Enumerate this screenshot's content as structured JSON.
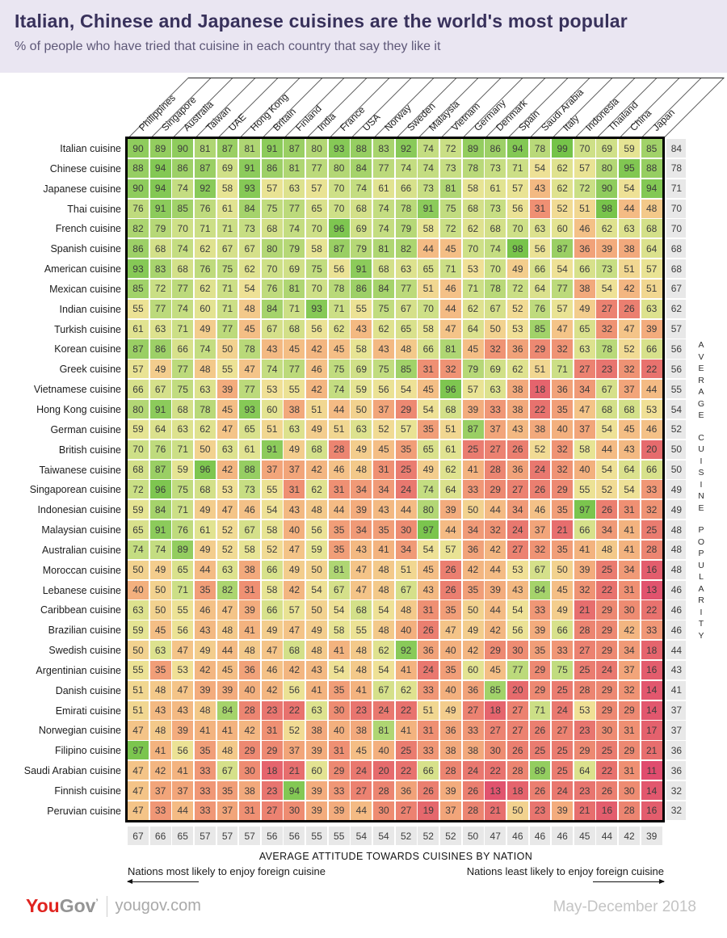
{
  "chart_data": {
    "type": "heatmap",
    "title": "Italian, Chinese and Japanese cuisines are the world's most popular",
    "subtitle": "% of people who have tried that cuisine in each country that say they like it",
    "columns": [
      "Philippines",
      "Singapore",
      "Australia",
      "Taiwan",
      "UAE",
      "Hong Kong",
      "Britain",
      "Finland",
      "India",
      "France",
      "USA",
      "Norway",
      "Sweden",
      "Malaysia",
      "Vietnam",
      "Germany",
      "Denmark",
      "Spain",
      "Saudi Arabia",
      "Italy",
      "Indonesia",
      "Thailand",
      "China",
      "Japan"
    ],
    "rows": [
      {
        "label": "Italian cuisine",
        "values": [
          90,
          89,
          90,
          81,
          87,
          81,
          91,
          87,
          80,
          93,
          88,
          83,
          92,
          74,
          72,
          89,
          86,
          94,
          78,
          99,
          70,
          69,
          59,
          85
        ],
        "average": 84
      },
      {
        "label": "Chinese cuisine",
        "values": [
          88,
          94,
          86,
          87,
          69,
          91,
          86,
          81,
          77,
          80,
          84,
          77,
          74,
          74,
          73,
          78,
          73,
          71,
          54,
          62,
          57,
          80,
          95,
          88
        ],
        "average": 78
      },
      {
        "label": "Japanese cuisine",
        "values": [
          90,
          94,
          74,
          92,
          58,
          93,
          57,
          63,
          57,
          70,
          74,
          61,
          66,
          73,
          81,
          58,
          61,
          57,
          43,
          62,
          72,
          90,
          54,
          94
        ],
        "average": 71
      },
      {
        "label": "Thai cuisine",
        "values": [
          76,
          91,
          85,
          76,
          61,
          84,
          75,
          77,
          65,
          70,
          68,
          74,
          78,
          91,
          75,
          68,
          73,
          56,
          31,
          52,
          51,
          98,
          44,
          48
        ],
        "average": 70
      },
      {
        "label": "French cuisine",
        "values": [
          82,
          79,
          70,
          71,
          71,
          73,
          68,
          74,
          70,
          96,
          69,
          74,
          79,
          58,
          72,
          62,
          68,
          70,
          63,
          60,
          46,
          62,
          63,
          68
        ],
        "average": 70
      },
      {
        "label": "Spanish cuisine",
        "values": [
          86,
          68,
          74,
          62,
          67,
          67,
          80,
          79,
          58,
          87,
          79,
          81,
          82,
          44,
          45,
          70,
          74,
          98,
          56,
          87,
          36,
          39,
          38,
          64
        ],
        "average": 68
      },
      {
        "label": "American cuisine",
        "values": [
          93,
          83,
          68,
          76,
          75,
          62,
          70,
          69,
          75,
          56,
          91,
          68,
          63,
          65,
          71,
          53,
          70,
          49,
          66,
          54,
          66,
          73,
          51,
          57
        ],
        "average": 68
      },
      {
        "label": "Mexican cuisine",
        "values": [
          85,
          72,
          77,
          62,
          71,
          54,
          76,
          81,
          70,
          78,
          86,
          84,
          77,
          51,
          46,
          71,
          78,
          72,
          64,
          77,
          38,
          54,
          42,
          51
        ],
        "average": 67
      },
      {
        "label": "Indian cuisine",
        "values": [
          55,
          77,
          74,
          60,
          71,
          48,
          84,
          71,
          93,
          71,
          55,
          75,
          67,
          70,
          44,
          62,
          67,
          52,
          76,
          57,
          49,
          27,
          26,
          63
        ],
        "average": 62
      },
      {
        "label": "Turkish cuisine",
        "values": [
          61,
          63,
          71,
          49,
          77,
          45,
          67,
          68,
          56,
          62,
          43,
          62,
          65,
          58,
          47,
          64,
          50,
          53,
          85,
          47,
          65,
          32,
          47,
          39
        ],
        "average": 57
      },
      {
        "label": "Korean cuisine",
        "values": [
          87,
          86,
          66,
          74,
          50,
          78,
          43,
          45,
          42,
          45,
          58,
          43,
          48,
          66,
          81,
          45,
          32,
          36,
          29,
          32,
          63,
          78,
          52,
          66
        ],
        "average": 56
      },
      {
        "label": "Greek cuisine",
        "values": [
          57,
          49,
          77,
          48,
          55,
          47,
          74,
          77,
          46,
          75,
          69,
          75,
          85,
          31,
          32,
          79,
          69,
          62,
          51,
          71,
          27,
          23,
          32,
          22
        ],
        "average": 56
      },
      {
        "label": "Vietnamese cuisine",
        "values": [
          66,
          67,
          75,
          63,
          39,
          77,
          53,
          55,
          42,
          74,
          59,
          56,
          54,
          45,
          96,
          57,
          63,
          38,
          18,
          36,
          34,
          67,
          37,
          44
        ],
        "average": 55
      },
      {
        "label": "Hong Kong cuisine",
        "values": [
          80,
          91,
          68,
          78,
          45,
          93,
          60,
          38,
          51,
          44,
          50,
          37,
          29,
          54,
          68,
          39,
          33,
          38,
          22,
          35,
          47,
          68,
          68,
          53
        ],
        "average": 54
      },
      {
        "label": "German cuisine",
        "values": [
          59,
          64,
          63,
          62,
          47,
          65,
          51,
          63,
          49,
          51,
          63,
          52,
          57,
          35,
          51,
          87,
          37,
          43,
          38,
          40,
          37,
          54,
          45,
          46
        ],
        "average": 52
      },
      {
        "label": "British cuisine",
        "values": [
          70,
          76,
          71,
          50,
          63,
          61,
          91,
          49,
          68,
          28,
          49,
          45,
          35,
          65,
          61,
          25,
          27,
          26,
          52,
          32,
          58,
          44,
          43,
          20
        ],
        "average": 50
      },
      {
        "label": "Taiwanese cuisine",
        "values": [
          68,
          87,
          59,
          96,
          42,
          88,
          37,
          37,
          42,
          46,
          48,
          31,
          25,
          49,
          62,
          41,
          28,
          36,
          24,
          32,
          40,
          54,
          64,
          66
        ],
        "average": 50
      },
      {
        "label": "Singaporean cuisine",
        "values": [
          72,
          96,
          75,
          68,
          53,
          73,
          55,
          31,
          62,
          31,
          34,
          34,
          24,
          74,
          64,
          33,
          29,
          27,
          26,
          29,
          55,
          52,
          54,
          33
        ],
        "average": 49
      },
      {
        "label": "Indonesian cuisine",
        "values": [
          59,
          84,
          71,
          49,
          47,
          46,
          54,
          43,
          48,
          44,
          39,
          43,
          44,
          80,
          39,
          50,
          44,
          34,
          46,
          35,
          97,
          26,
          31,
          32
        ],
        "average": 49
      },
      {
        "label": "Malaysian cuisine",
        "values": [
          65,
          91,
          76,
          61,
          52,
          67,
          58,
          40,
          56,
          35,
          34,
          35,
          30,
          97,
          44,
          34,
          32,
          24,
          37,
          21,
          66,
          34,
          41,
          25
        ],
        "average": 48
      },
      {
        "label": "Australian cuisine",
        "values": [
          74,
          74,
          89,
          49,
          52,
          58,
          52,
          47,
          59,
          35,
          43,
          41,
          34,
          54,
          57,
          36,
          42,
          27,
          32,
          35,
          41,
          48,
          41,
          28
        ],
        "average": 48
      },
      {
        "label": "Moroccan cuisine",
        "values": [
          50,
          49,
          65,
          44,
          63,
          38,
          66,
          49,
          50,
          81,
          47,
          48,
          51,
          45,
          26,
          42,
          44,
          53,
          67,
          50,
          39,
          25,
          34,
          16
        ],
        "average": 48
      },
      {
        "label": "Lebanese cuisine",
        "values": [
          40,
          50,
          71,
          35,
          82,
          31,
          58,
          42,
          54,
          67,
          47,
          48,
          67,
          43,
          26,
          35,
          39,
          43,
          84,
          45,
          32,
          22,
          31,
          13
        ],
        "average": 46
      },
      {
        "label": "Caribbean cuisine",
        "values": [
          63,
          50,
          55,
          46,
          47,
          39,
          66,
          57,
          50,
          54,
          68,
          54,
          48,
          31,
          35,
          50,
          44,
          54,
          33,
          49,
          21,
          29,
          30,
          22
        ],
        "average": 46
      },
      {
        "label": "Brazilian cuisine",
        "values": [
          59,
          45,
          56,
          43,
          48,
          41,
          49,
          47,
          49,
          58,
          55,
          48,
          40,
          26,
          47,
          49,
          42,
          56,
          39,
          66,
          28,
          29,
          42,
          33
        ],
        "average": 46
      },
      {
        "label": "Swedish cuisine",
        "values": [
          50,
          63,
          47,
          49,
          44,
          48,
          47,
          68,
          48,
          41,
          48,
          62,
          92,
          36,
          40,
          42,
          29,
          30,
          35,
          33,
          27,
          29,
          34,
          18
        ],
        "average": 44
      },
      {
        "label": "Argentinian cuisine",
        "values": [
          55,
          35,
          53,
          42,
          45,
          36,
          46,
          42,
          43,
          54,
          48,
          54,
          41,
          24,
          35,
          60,
          45,
          77,
          29,
          75,
          25,
          24,
          37,
          16
        ],
        "average": 43
      },
      {
        "label": "Danish cuisine",
        "values": [
          51,
          48,
          47,
          39,
          39,
          40,
          42,
          56,
          41,
          35,
          41,
          67,
          62,
          33,
          40,
          36,
          85,
          20,
          29,
          25,
          28,
          29,
          32,
          14
        ],
        "average": 41
      },
      {
        "label": "Emirati cuisine",
        "values": [
          51,
          43,
          43,
          48,
          84,
          28,
          23,
          22,
          63,
          30,
          23,
          24,
          22,
          51,
          49,
          27,
          18,
          27,
          71,
          24,
          53,
          29,
          29,
          14
        ],
        "average": 37
      },
      {
        "label": "Norwegian cuisine",
        "values": [
          47,
          48,
          39,
          41,
          41,
          42,
          31,
          52,
          38,
          40,
          38,
          81,
          41,
          31,
          36,
          33,
          27,
          27,
          26,
          27,
          23,
          30,
          31,
          17
        ],
        "average": 37
      },
      {
        "label": "Filipino cuisine",
        "values": [
          97,
          41,
          56,
          35,
          48,
          29,
          29,
          37,
          39,
          31,
          45,
          40,
          25,
          33,
          38,
          38,
          30,
          26,
          25,
          25,
          29,
          25,
          29,
          21
        ],
        "average": 36
      },
      {
        "label": "Saudi Arabian cuisine",
        "values": [
          47,
          42,
          41,
          33,
          67,
          30,
          18,
          21,
          60,
          29,
          24,
          20,
          22,
          66,
          28,
          24,
          22,
          28,
          89,
          25,
          64,
          22,
          31,
          11
        ],
        "average": 36
      },
      {
        "label": "Finnish cuisine",
        "values": [
          47,
          37,
          37,
          33,
          35,
          38,
          23,
          94,
          39,
          33,
          27,
          28,
          36,
          26,
          39,
          26,
          13,
          18,
          26,
          24,
          23,
          26,
          30,
          14
        ],
        "average": 32
      },
      {
        "label": "Peruvian cuisine",
        "values": [
          47,
          33,
          44,
          33,
          37,
          31,
          27,
          30,
          39,
          39,
          44,
          30,
          27,
          19,
          37,
          28,
          21,
          50,
          23,
          39,
          21,
          16,
          28,
          16
        ],
        "average": 32
      }
    ],
    "column_averages": [
      67,
      66,
      65,
      57,
      57,
      57,
      56,
      56,
      55,
      55,
      54,
      54,
      52,
      52,
      52,
      50,
      47,
      46,
      46,
      46,
      45,
      44,
      42,
      39
    ],
    "right_axis_label": "AVERAGE CUISINE POPULARITY",
    "bottom_axis_label": "AVERAGE ATTITUDE TOWARDS CUISINES BY NATION",
    "legend_left": "Nations most likely to enjoy foreign cuisine",
    "legend_right": "Nations least likely to enjoy foreign cuisine",
    "average_cell_color": "#e8e8e8",
    "color_scale": [
      [
        10,
        "#df496e"
      ],
      [
        20,
        "#e66b6d"
      ],
      [
        30,
        "#ee8c72"
      ],
      [
        40,
        "#f3b07e"
      ],
      [
        47,
        "#f4c488"
      ],
      [
        53,
        "#f0e096"
      ],
      [
        58,
        "#e7e494"
      ],
      [
        65,
        "#d9e18c"
      ],
      [
        72,
        "#cadf85"
      ],
      [
        80,
        "#b3d775"
      ],
      [
        90,
        "#8fcc5d"
      ],
      [
        100,
        "#72c247"
      ]
    ],
    "layout": {
      "grid_on": false,
      "legend_position": "bottom"
    }
  },
  "header": {
    "bg": "#eae6f2",
    "title_color": "#38315b"
  },
  "footer": {
    "logo_you": "You",
    "logo_gov": "Gov",
    "logo_mark": "’",
    "site": "yougov.com",
    "date_range": "May-December 2018"
  }
}
